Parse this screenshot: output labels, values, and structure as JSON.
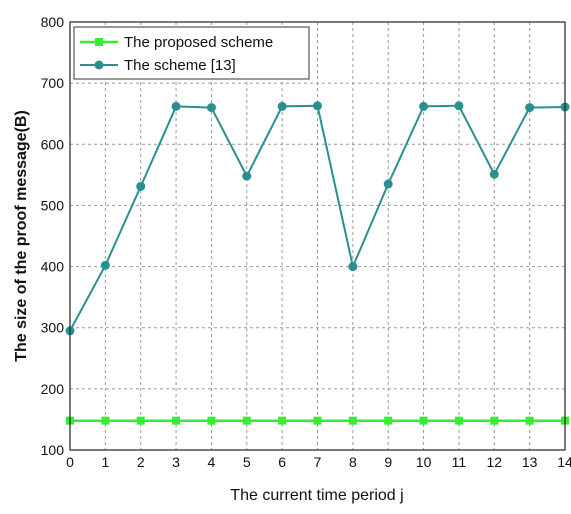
{
  "chart_data": {
    "type": "line",
    "title": "",
    "xlabel": "The current time period j",
    "ylabel": "The size of the proof message(B)",
    "xlim": [
      0,
      14
    ],
    "ylim": [
      100,
      800
    ],
    "x": [
      0,
      1,
      2,
      3,
      4,
      5,
      6,
      7,
      8,
      9,
      10,
      11,
      12,
      13,
      14
    ],
    "x_ticks": [
      "0",
      "1",
      "2",
      "3",
      "4",
      "5",
      "6",
      "7",
      "8",
      "9",
      "10",
      "11",
      "12",
      "13",
      "14"
    ],
    "y_ticks": [
      "100",
      "200",
      "300",
      "400",
      "500",
      "600",
      "700",
      "800"
    ],
    "grid": true,
    "legend_position": "top-left",
    "series": [
      {
        "name": "The proposed scheme",
        "color": "#33ee33",
        "marker": "square",
        "values": [
          148,
          148,
          148,
          148,
          148,
          148,
          148,
          148,
          148,
          148,
          148,
          148,
          148,
          148,
          148
        ]
      },
      {
        "name": "The scheme [13]",
        "color": "#2a8f8f",
        "marker": "circle",
        "values": [
          295,
          402,
          531,
          662,
          660,
          548,
          662,
          663,
          400,
          535,
          662,
          663,
          551,
          660,
          661
        ]
      }
    ]
  }
}
